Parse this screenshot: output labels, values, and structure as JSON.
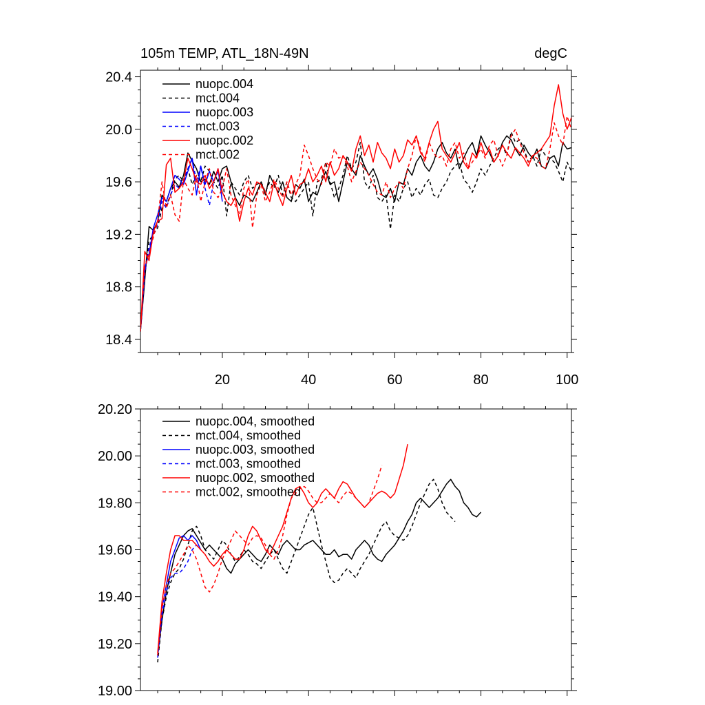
{
  "chart_data": [
    {
      "type": "line",
      "title_left": "105m TEMP, ATL_18N-49N",
      "title_right": "degC",
      "xlabel": "",
      "ylabel": "",
      "xlim": [
        1,
        101
      ],
      "ylim": [
        18.3,
        20.45
      ],
      "xticks": [
        20,
        40,
        60,
        80,
        100
      ],
      "xtick_labels": [
        "20",
        "40",
        "60",
        "80",
        "100"
      ],
      "yticks": [
        18.4,
        18.8,
        19.2,
        19.6,
        20.0,
        20.4
      ],
      "ytick_labels": [
        "18.4",
        "18.8",
        "19.2",
        "19.6",
        "20.0",
        "20.4"
      ],
      "legend_position": "top-left",
      "series": [
        {
          "name": "nuopc.004",
          "color": "#000000",
          "dash": "solid",
          "x_start": 1,
          "values": [
            18.46,
            18.85,
            19.26,
            19.23,
            19.3,
            19.5,
            19.45,
            19.55,
            19.6,
            19.56,
            19.65,
            19.82,
            19.76,
            19.7,
            19.6,
            19.62,
            19.58,
            19.68,
            19.6,
            19.7,
            19.72,
            19.6,
            19.48,
            19.42,
            19.5,
            19.48,
            19.45,
            19.52,
            19.6,
            19.5,
            19.65,
            19.58,
            19.52,
            19.6,
            19.48,
            19.45,
            19.58,
            19.55,
            19.62,
            19.45,
            19.52,
            19.5,
            19.6,
            19.68,
            19.58,
            19.6,
            19.45,
            19.6,
            19.75,
            19.7,
            19.65,
            19.8,
            19.72,
            19.65,
            19.7,
            19.62,
            19.5,
            19.48,
            19.55,
            19.45,
            19.6,
            19.58,
            19.7,
            19.65,
            19.75,
            19.8,
            19.72,
            19.68,
            19.75,
            19.85,
            19.9,
            19.82,
            19.78,
            19.85,
            19.7,
            19.78,
            19.85,
            19.9,
            19.8,
            19.95,
            19.88,
            19.82,
            19.75,
            19.8,
            19.9,
            19.95,
            19.92,
            19.85,
            19.8,
            19.88,
            19.82,
            19.78,
            19.85,
            19.72,
            19.7,
            19.78,
            19.8,
            19.72,
            19.9,
            19.85,
            19.86
          ]
        },
        {
          "name": "mct.004",
          "color": "#000000",
          "dash": "dashed",
          "x_start": 1,
          "values": [
            18.46,
            18.9,
            19.15,
            19.2,
            19.25,
            19.4,
            19.42,
            19.5,
            19.62,
            19.65,
            19.6,
            19.7,
            19.58,
            19.65,
            19.6,
            19.72,
            19.68,
            19.6,
            19.55,
            19.65,
            19.34,
            19.6,
            19.55,
            19.5,
            19.6,
            19.65,
            19.55,
            19.58,
            19.6,
            19.52,
            19.6,
            19.55,
            19.65,
            19.5,
            19.6,
            19.48,
            19.45,
            19.5,
            19.55,
            19.6,
            19.34,
            19.6,
            19.62,
            19.75,
            19.6,
            19.48,
            19.55,
            19.65,
            19.8,
            19.7,
            19.75,
            19.9,
            19.6,
            19.55,
            19.65,
            19.48,
            19.45,
            19.5,
            19.24,
            19.5,
            19.45,
            19.55,
            19.6,
            19.48,
            19.55,
            19.5,
            19.58,
            19.62,
            19.5,
            19.48,
            19.55,
            19.6,
            19.68,
            19.72,
            19.75,
            19.62,
            19.58,
            19.52,
            19.6,
            19.7,
            19.65,
            19.72,
            19.78,
            19.85,
            19.88,
            19.8,
            19.98,
            19.9,
            19.92,
            19.85,
            19.75,
            19.8,
            19.72,
            19.85,
            19.8,
            19.78,
            19.75,
            19.68,
            19.6,
            19.75,
            19.68
          ]
        },
        {
          "name": "nuopc.003",
          "color": "#0000ff",
          "dash": "solid",
          "x_start": 1,
          "values": [
            18.46,
            18.95,
            19.05,
            19.25,
            19.35,
            19.48,
            19.45,
            19.55,
            19.65,
            19.62,
            19.58,
            19.68,
            19.78,
            19.5,
            19.72,
            19.58,
            19.68,
            19.6,
            19.7,
            19.45
          ]
        },
        {
          "name": "mct.003",
          "color": "#0000ff",
          "dash": "dashed",
          "x_start": 1,
          "values": [
            18.46,
            18.9,
            19.1,
            19.2,
            19.28,
            19.45,
            19.4,
            19.5,
            19.58,
            19.55,
            19.62,
            19.7,
            19.78,
            19.6,
            19.72,
            19.55,
            19.42,
            19.6,
            19.68,
            19.55
          ]
        },
        {
          "name": "nuopc.002",
          "color": "#ff0000",
          "dash": "solid",
          "x_start": 1,
          "values": [
            18.46,
            19.07,
            19.0,
            19.22,
            19.3,
            19.32,
            19.73,
            19.78,
            19.52,
            19.55,
            19.6,
            19.78,
            19.7,
            19.6,
            19.58,
            19.65,
            19.55,
            19.6,
            19.7,
            19.52,
            19.45,
            19.42,
            19.48,
            19.3,
            19.45,
            19.55,
            19.5,
            19.6,
            19.58,
            19.52,
            19.45,
            19.6,
            19.5,
            19.42,
            19.55,
            19.65,
            19.5,
            19.58,
            19.6,
            19.7,
            19.6,
            19.65,
            19.72,
            19.6,
            19.75,
            19.65,
            19.7,
            19.8,
            19.75,
            19.68,
            19.85,
            19.95,
            19.8,
            19.88,
            19.75,
            19.9,
            19.82,
            19.78,
            19.7,
            19.85,
            19.75,
            19.8,
            19.92,
            19.88,
            19.95,
            19.82,
            19.78,
            19.9,
            20.0,
            20.06,
            19.85,
            19.8,
            19.75,
            19.82,
            19.9,
            19.75,
            19.7,
            19.82,
            19.78,
            19.9,
            19.8,
            19.85,
            19.75,
            19.8,
            19.88,
            19.82,
            19.78,
            19.86,
            19.82,
            19.78,
            19.72,
            19.8,
            19.82,
            19.85,
            19.9,
            19.95,
            20.18,
            20.34,
            20.12,
            20.0,
            20.09
          ]
        },
        {
          "name": "mct.002",
          "color": "#ff0000",
          "dash": "dashed",
          "x_start": 1,
          "values": [
            18.46,
            18.95,
            19.05,
            19.18,
            19.3,
            19.6,
            19.4,
            19.5,
            19.35,
            19.3,
            19.62,
            19.55,
            19.5,
            19.65,
            19.45,
            19.6,
            19.7,
            19.52,
            19.48,
            19.55,
            19.7,
            19.5,
            19.42,
            19.35,
            19.55,
            19.62,
            19.25,
            19.5,
            19.58,
            19.45,
            19.52,
            19.62,
            19.55,
            19.48,
            19.6,
            19.5,
            19.58,
            19.65,
            19.88,
            19.8,
            19.7,
            19.62,
            19.58,
            19.75,
            19.72,
            19.85,
            19.78,
            19.8,
            19.72,
            19.6,
            19.68,
            19.75,
            19.7,
            19.65,
            19.58,
            19.52,
            19.5,
            19.6,
            19.48,
            19.55,
            19.6,
            19.55,
            19.7,
            19.8,
            19.95,
            19.85,
            19.75,
            19.9,
            19.82,
            19.78,
            19.8,
            19.72,
            19.85,
            19.9,
            19.78,
            19.82,
            19.7,
            19.75,
            19.8,
            19.85,
            19.78,
            19.88,
            19.92,
            19.8,
            19.72,
            19.8,
            19.95,
            20.0,
            19.9,
            19.82,
            19.75,
            19.8,
            19.78,
            19.72,
            19.7,
            19.85,
            20.05,
            19.95,
            19.88,
            20.1,
            20.0
          ]
        }
      ]
    },
    {
      "type": "line",
      "title_left": "",
      "title_right": "",
      "xlabel": "",
      "ylabel": "",
      "xlim": [
        1,
        101
      ],
      "ylim": [
        19.0,
        20.2
      ],
      "xticks": [
        20,
        40,
        60,
        80,
        100
      ],
      "xtick_labels": [],
      "yticks": [
        19.0,
        19.2,
        19.4,
        19.6,
        19.8,
        20.0,
        20.2
      ],
      "ytick_labels": [
        "19.00",
        "19.20",
        "19.40",
        "19.60",
        "19.80",
        "20.00",
        "20.20"
      ],
      "legend_position": "top-left",
      "series": [
        {
          "name": "nuopc.004, smoothed",
          "color": "#000000",
          "dash": "solid",
          "x_start": 5,
          "values": [
            19.15,
            19.3,
            19.42,
            19.5,
            19.58,
            19.62,
            19.66,
            19.68,
            19.69,
            19.66,
            19.63,
            19.6,
            19.62,
            19.6,
            19.58,
            19.56,
            19.52,
            19.5,
            19.54,
            19.56,
            19.58,
            19.6,
            19.58,
            19.56,
            19.55,
            19.58,
            19.62,
            19.6,
            19.58,
            19.62,
            19.64,
            19.62,
            19.6,
            19.6,
            19.62,
            19.63,
            19.64,
            19.62,
            19.6,
            19.58,
            19.58,
            19.6,
            19.57,
            19.58,
            19.58,
            19.56,
            19.6,
            19.62,
            19.64,
            19.62,
            19.58,
            19.56,
            19.55,
            19.58,
            19.6,
            19.62,
            19.65,
            19.68,
            19.72,
            19.75,
            19.8,
            19.82,
            19.8,
            19.78,
            19.8,
            19.82,
            19.85,
            19.88,
            19.9,
            19.87,
            19.85,
            19.8,
            19.78,
            19.75,
            19.74,
            19.76
          ]
        },
        {
          "name": "mct.004, smoothed",
          "color": "#000000",
          "dash": "dashed",
          "x_start": 5,
          "values": [
            19.12,
            19.3,
            19.4,
            19.46,
            19.5,
            19.52,
            19.56,
            19.62,
            19.68,
            19.7,
            19.66,
            19.6,
            19.58,
            19.56,
            19.6,
            19.64,
            19.62,
            19.58,
            19.55,
            19.57,
            19.6,
            19.58,
            19.55,
            19.54,
            19.52,
            19.55,
            19.58,
            19.6,
            19.56,
            19.52,
            19.5,
            19.55,
            19.6,
            19.65,
            19.7,
            19.75,
            19.78,
            19.7,
            19.62,
            19.55,
            19.48,
            19.46,
            19.47,
            19.5,
            19.52,
            19.5,
            19.48,
            19.52,
            19.55,
            19.58,
            19.62,
            19.66,
            19.7,
            19.72,
            19.68,
            19.66,
            19.65,
            19.64,
            19.66,
            19.7,
            19.75,
            19.8,
            19.84,
            19.88,
            19.9,
            19.86,
            19.8,
            19.76,
            19.74,
            19.72
          ]
        },
        {
          "name": "nuopc.003, smoothed",
          "color": "#0000ff",
          "dash": "solid",
          "x_start": 5,
          "values": [
            19.15,
            19.35,
            19.45,
            19.55,
            19.6,
            19.65,
            19.66,
            19.64,
            19.66,
            19.64,
            19.6
          ]
        },
        {
          "name": "mct.003, smoothed",
          "color": "#0000ff",
          "dash": "dashed",
          "x_start": 5,
          "values": [
            19.14,
            19.32,
            19.42,
            19.48,
            19.5,
            19.5,
            19.52,
            19.55,
            19.6,
            19.62,
            19.6
          ]
        },
        {
          "name": "nuopc.002, smoothed",
          "color": "#ff0000",
          "dash": "solid",
          "x_start": 5,
          "values": [
            19.16,
            19.38,
            19.5,
            19.6,
            19.66,
            19.66,
            19.64,
            19.64,
            19.64,
            19.62,
            19.6,
            19.58,
            19.55,
            19.53,
            19.55,
            19.58,
            19.6,
            19.58,
            19.56,
            19.56,
            19.6,
            19.66,
            19.7,
            19.68,
            19.64,
            19.6,
            19.58,
            19.62,
            19.66,
            19.7,
            19.76,
            19.82,
            19.86,
            19.87,
            19.84,
            19.8,
            19.78,
            19.8,
            19.84,
            19.86,
            19.84,
            19.82,
            19.86,
            19.89,
            19.88,
            19.85,
            19.82,
            19.8,
            19.78,
            19.8,
            19.82,
            19.84,
            19.85,
            19.84,
            19.82,
            19.84,
            19.9,
            19.96,
            20.05
          ]
        },
        {
          "name": "mct.002, smoothed",
          "color": "#ff0000",
          "dash": "dashed",
          "x_start": 5,
          "values": [
            19.15,
            19.35,
            19.45,
            19.5,
            19.52,
            19.55,
            19.58,
            19.62,
            19.6,
            19.56,
            19.5,
            19.44,
            19.42,
            19.45,
            19.5,
            19.56,
            19.6,
            19.64,
            19.68,
            19.66,
            19.64,
            19.62,
            19.65,
            19.66,
            19.65,
            19.62,
            19.58,
            19.56,
            19.6,
            19.66,
            19.75,
            19.82,
            19.84,
            19.86,
            19.87,
            19.85,
            19.82,
            19.8,
            19.8,
            19.82,
            19.84,
            19.82,
            19.8,
            19.83,
            19.85,
            19.84,
            19.82,
            19.8,
            19.78,
            19.8,
            19.85,
            19.9,
            19.96
          ]
        }
      ]
    }
  ]
}
